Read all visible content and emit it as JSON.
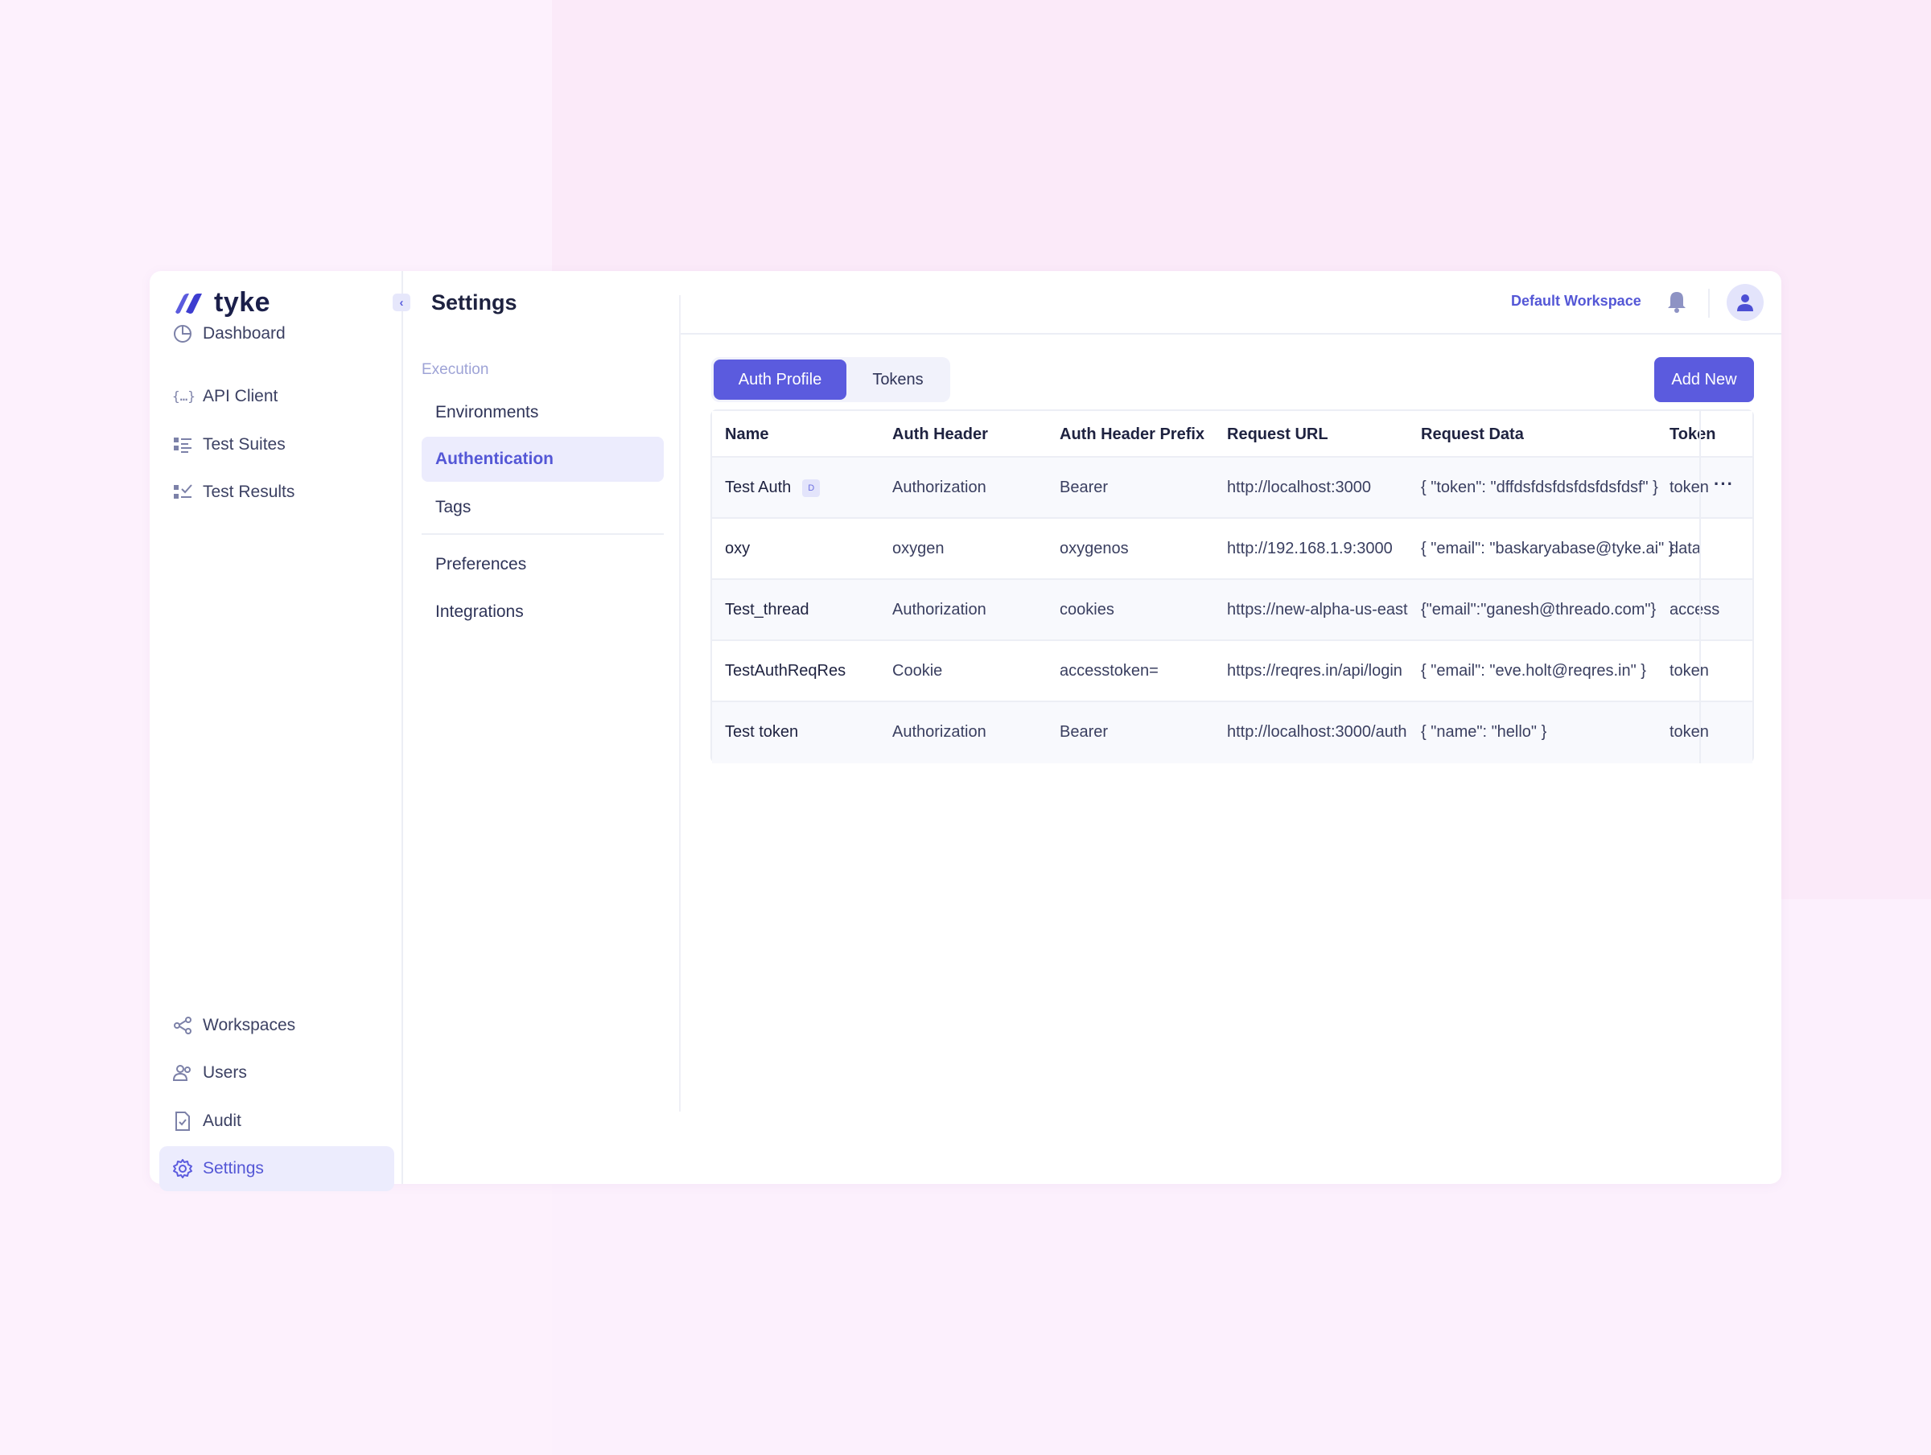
{
  "app": {
    "logo_text": "tyke",
    "page_title": "Settings"
  },
  "sidebar": {
    "top_items": [
      {
        "label": "Dashboard",
        "icon": "pie-chart-icon"
      },
      {
        "label": "API Client",
        "icon": "braces-icon"
      },
      {
        "label": "Test Suites",
        "icon": "list-grid-icon"
      },
      {
        "label": "Test Results",
        "icon": "checklist-icon"
      }
    ],
    "bottom_items": [
      {
        "label": "Workspaces",
        "icon": "workspaces-icon"
      },
      {
        "label": "Users",
        "icon": "users-icon"
      },
      {
        "label": "Audit",
        "icon": "document-check-icon"
      },
      {
        "label": "Settings",
        "icon": "gear-icon",
        "active": true
      }
    ]
  },
  "settings_nav": {
    "section_label": "Execution",
    "items": [
      {
        "label": "Environments"
      },
      {
        "label": "Authentication",
        "active": true
      },
      {
        "label": "Tags"
      },
      {
        "label": "Preferences"
      },
      {
        "label": "Integrations"
      }
    ]
  },
  "header": {
    "workspace": "Default Workspace",
    "icons": [
      "bell-icon",
      "user-avatar-icon"
    ]
  },
  "tabs": [
    {
      "label": "Auth Profile",
      "active": true
    },
    {
      "label": "Tokens"
    }
  ],
  "add_button": "Add New",
  "table": {
    "columns": [
      "Name",
      "Auth Header",
      "Auth Header Prefix",
      "Request URL",
      "Request Data",
      "Token"
    ],
    "rows": [
      {
        "name": "Test Auth",
        "badge": "D",
        "auth_header": "Authorization",
        "prefix": "Bearer",
        "url": "http://localhost:3000",
        "data": "{ \"token\": \"dffdsfdsfdsfdsfdsfdsf\" }",
        "token": "token"
      },
      {
        "name": "oxy",
        "auth_header": "oxygen",
        "prefix": "oxygenos",
        "url": "http://192.168.1.9:3000",
        "data": "{ \"email\": \"baskaryabase@tyke.ai\" }",
        "token": "data"
      },
      {
        "name": "Test_thread",
        "auth_header": "Authorization",
        "prefix": "cookies",
        "url": "https://new-alpha-us-east",
        "data": "{\"email\":\"ganesh@threado.com\"}",
        "token": "access"
      },
      {
        "name": "TestAuthReqRes",
        "auth_header": "Cookie",
        "prefix": "accesstoken=",
        "url": "https://reqres.in/api/login",
        "data": "{ \"email\": \"eve.holt@reqres.in\" }",
        "token": "token"
      },
      {
        "name": "Test token",
        "auth_header": "Authorization",
        "prefix": "Bearer",
        "url": "http://localhost:3000/auth",
        "data": "{ \"name\": \"hello\" }",
        "token": "token"
      }
    ],
    "row_menu": "···"
  },
  "colors": {
    "accent": "#5b5bde",
    "active_bg": "#ececfd",
    "page_bg": "#fcf0fd"
  }
}
